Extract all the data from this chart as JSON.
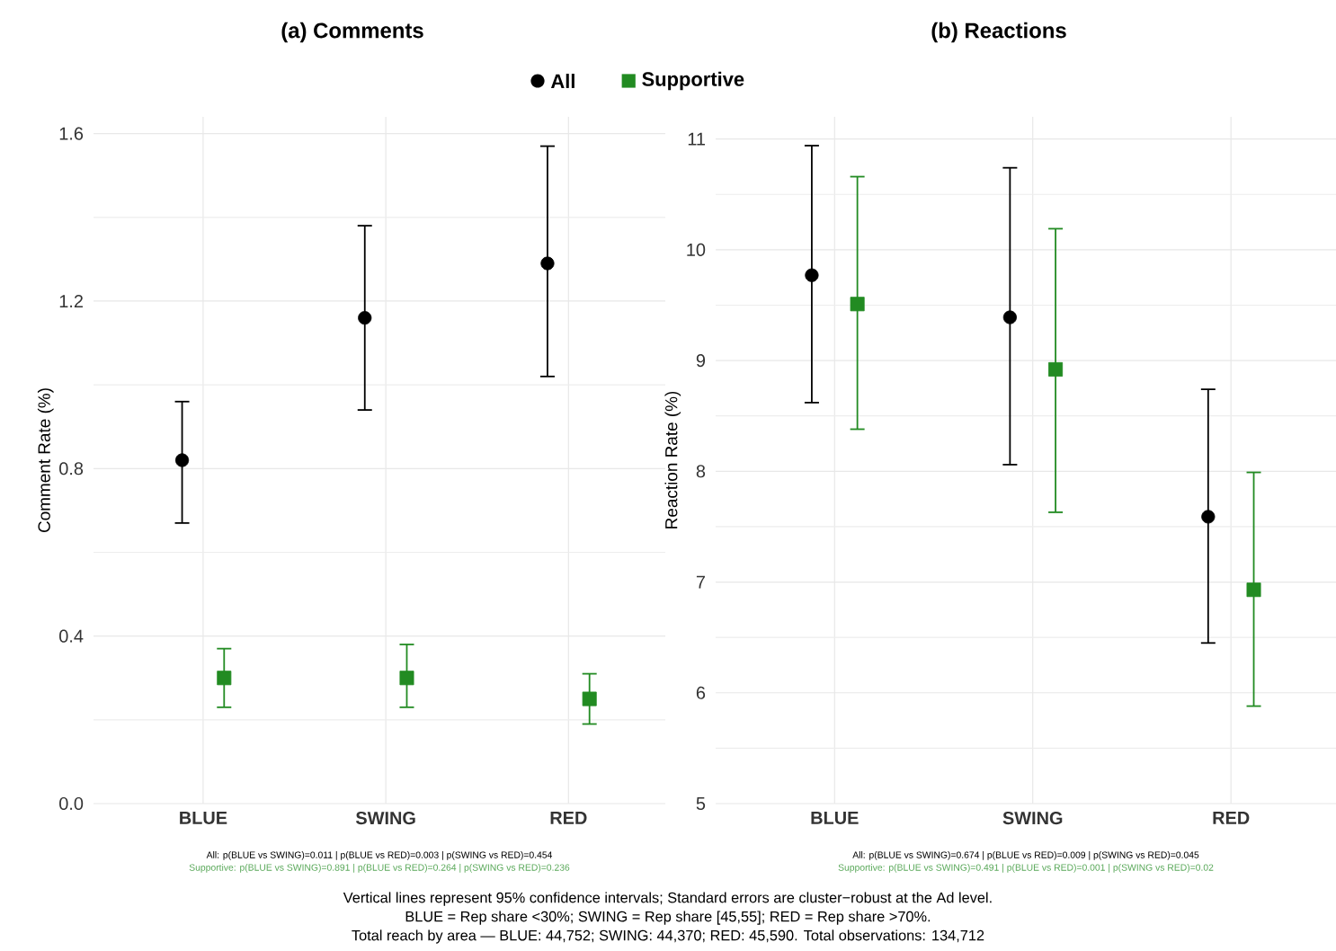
{
  "chart_data": [
    {
      "type": "scatter",
      "title": "(a) Comments",
      "ylabel": "Comment Rate (%)",
      "categories": [
        "BLUE",
        "SWING",
        "RED"
      ],
      "series": [
        {
          "name": "All",
          "color": "#000000",
          "marker": "circle",
          "values": [
            0.82,
            1.16,
            1.29
          ],
          "errors": [
            [
              0.67,
              0.96
            ],
            [
              0.94,
              1.38
            ],
            [
              1.02,
              1.57
            ]
          ]
        },
        {
          "name": "Supportive",
          "color": "#228b22",
          "marker": "square",
          "values": [
            0.3,
            0.3,
            0.25
          ],
          "errors": [
            [
              0.23,
              0.37
            ],
            [
              0.23,
              0.38
            ],
            [
              0.19,
              0.31
            ]
          ]
        }
      ],
      "ylim": [
        0,
        1.64
      ],
      "yticks": [
        {
          "value": 0,
          "label": "0.0"
        },
        {
          "value": 0.4,
          "label": "0.4"
        },
        {
          "value": 0.8,
          "label": "0.8"
        },
        {
          "value": 1.2,
          "label": "1.2"
        },
        {
          "value": 1.6,
          "label": "1.6"
        }
      ],
      "grid": true,
      "legend": "top",
      "annotations": [
        "All: p(BLUE vs SWING)=0.011 | p(BLUE vs RED)=0.003 | p(SWING vs RED)=0.454",
        "Supportive: p(BLUE vs SWING)=0.891 | p(BLUE vs RED)=0.264 | p(SWING vs RED)=0.236"
      ]
    },
    {
      "type": "scatter",
      "title": "(b) Reactions",
      "ylabel": "Reaction Rate (%)",
      "categories": [
        "BLUE",
        "SWING",
        "RED"
      ],
      "series": [
        {
          "color": "#000000",
          "marker": "circle",
          "values": [
            9.77,
            9.39,
            7.59
          ],
          "errors": [
            [
              8.62,
              10.94
            ],
            [
              8.06,
              10.74
            ],
            [
              6.45,
              8.74
            ]
          ]
        },
        {
          "color": "#228b22",
          "marker": "square",
          "values": [
            9.51,
            8.92,
            6.93
          ],
          "errors": [
            [
              8.38,
              10.66
            ],
            [
              7.63,
              10.19
            ],
            [
              5.88,
              7.99
            ]
          ]
        }
      ],
      "ylim": [
        5,
        11.2
      ],
      "yticks": [
        5,
        6,
        7,
        8,
        9,
        10,
        11
      ],
      "grid": true,
      "annotations": [
        "All: p(BLUE vs SWING)=0.674 | p(BLUE vs RED)=0.009 | p(SWING vs RED)=0.045",
        "Supportive: p(BLUE vs SWING)=0.491 | p(BLUE vs RED)=0.001 | p(SWING vs RED)=0.02",
        "Vertical lines represent 95% confidence intervals; Standard errors are cluster−robust at the Ad level.",
        "BLUE = Rep share <30%; SWING = Rep share [45,55]; RED = Rep share >70%.",
        "Total reach by area — BLUE: 44,752; SWING: 44,370; RED: 45,590. Total observations: 134,712"
      ]
    }
  ]
}
